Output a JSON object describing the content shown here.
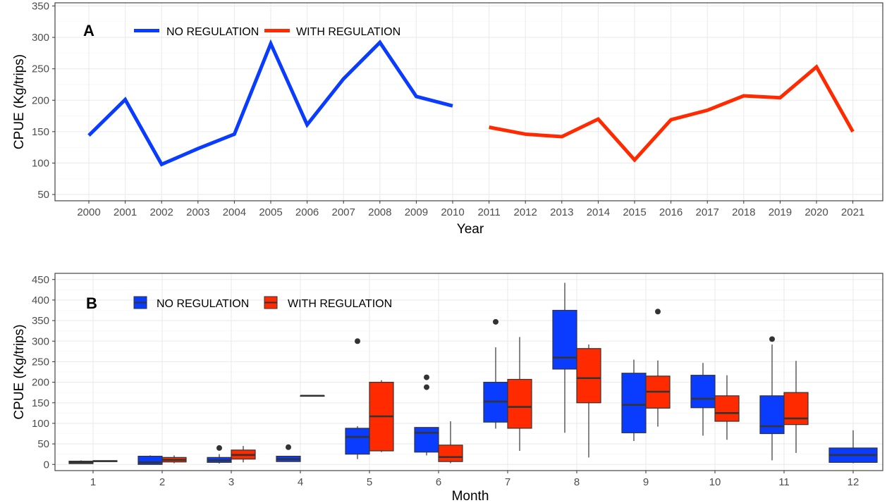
{
  "colors": {
    "no_regulation": "#0a3cff",
    "with_regulation": "#ff2a00",
    "box_outline": "#333333"
  },
  "chart_data": [
    {
      "panel": "A",
      "type": "line",
      "xlabel": "Year",
      "ylabel": "CPUE (Kg/trips)",
      "ylim": [
        40,
        355
      ],
      "yticks": [
        50,
        100,
        150,
        200,
        250,
        300,
        350
      ],
      "x": [
        "2000",
        "2001",
        "2002",
        "2003",
        "2004",
        "2005",
        "2006",
        "2007",
        "2008",
        "2009",
        "2010",
        "2011",
        "2012",
        "2013",
        "2014",
        "2015",
        "2016",
        "2017",
        "2018",
        "2019",
        "2020",
        "2021"
      ],
      "legend": {
        "position": "top-left",
        "entries": [
          "NO REGULATION",
          "WITH REGULATION"
        ]
      },
      "grid": true,
      "series": [
        {
          "name": "NO REGULATION",
          "color": "#0a3cff",
          "points": [
            [
              2000,
              144
            ],
            [
              2001,
              201
            ],
            [
              2002,
              98
            ],
            [
              2003,
              123
            ],
            [
              2004,
              146
            ],
            [
              2005,
              290
            ],
            [
              2006,
              161
            ],
            [
              2007,
              234
            ],
            [
              2008,
              292
            ],
            [
              2009,
              206
            ],
            [
              2010,
              191
            ]
          ]
        },
        {
          "name": "WITH REGULATION",
          "color": "#ff2a00",
          "points": [
            [
              2011,
              157
            ],
            [
              2012,
              146
            ],
            [
              2013,
              142
            ],
            [
              2014,
              170
            ],
            [
              2015,
              105
            ],
            [
              2016,
              169
            ],
            [
              2017,
              184
            ],
            [
              2018,
              207
            ],
            [
              2019,
              204
            ],
            [
              2020,
              253
            ],
            [
              2021,
              150
            ]
          ]
        }
      ]
    },
    {
      "panel": "B",
      "type": "box",
      "xlabel": "Month",
      "ylabel": "CPUE (Kg/trips)",
      "ylim": [
        -15,
        465
      ],
      "yticks": [
        0,
        50,
        100,
        150,
        200,
        250,
        300,
        350,
        400,
        450
      ],
      "categories": [
        "1",
        "2",
        "3",
        "4",
        "5",
        "6",
        "7",
        "8",
        "9",
        "10",
        "11",
        "12"
      ],
      "legend": {
        "position": "top-left",
        "entries": [
          "NO REGULATION",
          "WITH REGULATION"
        ]
      },
      "grid": true,
      "boxes": [
        {
          "month": 1,
          "group": "NO REGULATION",
          "min": 2,
          "q1": 2,
          "median": 5,
          "q3": 8,
          "max": 10,
          "outliers": []
        },
        {
          "month": 1,
          "group": "WITH REGULATION",
          "min": 7,
          "q1": 7,
          "median": 8,
          "q3": 9,
          "max": 9,
          "outliers": []
        },
        {
          "month": 2,
          "group": "NO REGULATION",
          "min": 0,
          "q1": 0,
          "median": 5,
          "q3": 20,
          "max": 22,
          "outliers": []
        },
        {
          "month": 2,
          "group": "WITH REGULATION",
          "min": 3,
          "q1": 6,
          "median": 11,
          "q3": 17,
          "max": 22,
          "outliers": []
        },
        {
          "month": 3,
          "group": "NO REGULATION",
          "min": 2,
          "q1": 5,
          "median": 10,
          "q3": 17,
          "max": 25,
          "outliers": [
            40
          ]
        },
        {
          "month": 3,
          "group": "WITH REGULATION",
          "min": 5,
          "q1": 13,
          "median": 23,
          "q3": 35,
          "max": 45,
          "outliers": []
        },
        {
          "month": 4,
          "group": "NO REGULATION",
          "min": 7,
          "q1": 7,
          "median": 13,
          "q3": 20,
          "max": 20,
          "outliers": [
            42
          ]
        },
        {
          "month": 4,
          "group": "WITH REGULATION",
          "min": 167,
          "q1": 167,
          "median": 167,
          "q3": 167,
          "max": 167,
          "outliers": []
        },
        {
          "month": 5,
          "group": "NO REGULATION",
          "min": 13,
          "q1": 25,
          "median": 67,
          "q3": 88,
          "max": 93,
          "outliers": [
            300
          ]
        },
        {
          "month": 5,
          "group": "WITH REGULATION",
          "min": 30,
          "q1": 33,
          "median": 117,
          "q3": 200,
          "max": 205,
          "outliers": []
        },
        {
          "month": 6,
          "group": "NO REGULATION",
          "min": 22,
          "q1": 30,
          "median": 77,
          "q3": 90,
          "max": 90,
          "outliers": [
            188,
            212
          ]
        },
        {
          "month": 6,
          "group": "WITH REGULATION",
          "min": 3,
          "q1": 7,
          "median": 18,
          "q3": 47,
          "max": 105,
          "outliers": []
        },
        {
          "month": 7,
          "group": "NO REGULATION",
          "min": 87,
          "q1": 103,
          "median": 153,
          "q3": 200,
          "max": 285,
          "outliers": [
            347
          ]
        },
        {
          "month": 7,
          "group": "WITH REGULATION",
          "min": 33,
          "q1": 88,
          "median": 140,
          "q3": 207,
          "max": 310,
          "outliers": []
        },
        {
          "month": 8,
          "group": "NO REGULATION",
          "min": 77,
          "q1": 232,
          "median": 260,
          "q3": 375,
          "max": 442,
          "outliers": []
        },
        {
          "month": 8,
          "group": "WITH REGULATION",
          "min": 17,
          "q1": 150,
          "median": 210,
          "q3": 282,
          "max": 292,
          "outliers": []
        },
        {
          "month": 9,
          "group": "NO REGULATION",
          "min": 57,
          "q1": 77,
          "median": 145,
          "q3": 222,
          "max": 255,
          "outliers": []
        },
        {
          "month": 9,
          "group": "WITH REGULATION",
          "min": 92,
          "q1": 137,
          "median": 177,
          "q3": 215,
          "max": 253,
          "outliers": [
            372
          ]
        },
        {
          "month": 10,
          "group": "NO REGULATION",
          "min": 70,
          "q1": 138,
          "median": 160,
          "q3": 217,
          "max": 247,
          "outliers": []
        },
        {
          "month": 10,
          "group": "WITH REGULATION",
          "min": 60,
          "q1": 105,
          "median": 125,
          "q3": 167,
          "max": 217,
          "outliers": []
        },
        {
          "month": 11,
          "group": "NO REGULATION",
          "min": 10,
          "q1": 75,
          "median": 93,
          "q3": 167,
          "max": 292,
          "outliers": [
            305
          ]
        },
        {
          "month": 11,
          "group": "WITH REGULATION",
          "min": 28,
          "q1": 97,
          "median": 112,
          "q3": 175,
          "max": 252,
          "outliers": []
        },
        {
          "month": 12,
          "group": "NO REGULATION",
          "min": 3,
          "q1": 5,
          "median": 23,
          "q3": 40,
          "max": 83,
          "outliers": []
        }
      ]
    }
  ]
}
